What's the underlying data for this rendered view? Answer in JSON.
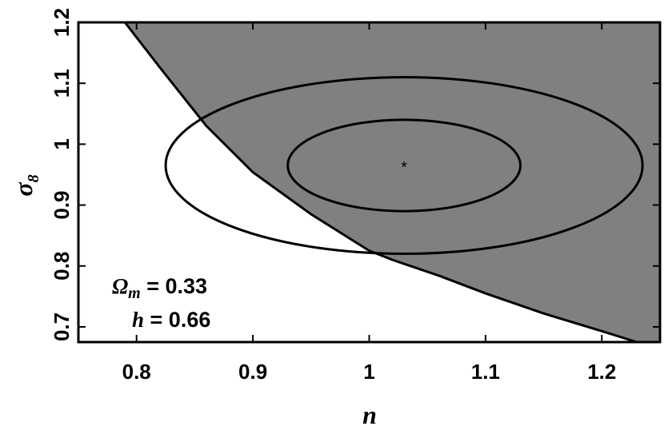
{
  "chart_data": {
    "type": "contour",
    "xlabel": "n",
    "ylabel": "σ",
    "ylabel_sub": "8",
    "xlim": [
      0.75,
      1.25
    ],
    "ylim": [
      0.675,
      1.2
    ],
    "x_ticks": [
      {
        "value": 0.8,
        "label": "0.8"
      },
      {
        "value": 0.9,
        "label": "0.9"
      },
      {
        "value": 1.0,
        "label": "1"
      },
      {
        "value": 1.1,
        "label": "1.1"
      },
      {
        "value": 1.2,
        "label": "1.2"
      }
    ],
    "y_ticks": [
      {
        "value": 0.7,
        "label": "0.7"
      },
      {
        "value": 0.8,
        "label": "0.8"
      },
      {
        "value": 0.9,
        "label": "0.9"
      },
      {
        "value": 1.0,
        "label": "1"
      },
      {
        "value": 1.1,
        "label": "1.1"
      },
      {
        "value": 1.2,
        "label": "1.2"
      }
    ],
    "center": {
      "x": 1.03,
      "y": 0.965,
      "marker": "*"
    },
    "ellipses": [
      {
        "level": "inner",
        "semi_axis_x": 0.1,
        "semi_axis_y": 0.075
      },
      {
        "level": "outer",
        "semi_axis_x": 0.205,
        "semi_axis_y": 0.145
      }
    ],
    "shaded_region": {
      "description_side": "above-right of boundary",
      "color": "#808080",
      "boundary": [
        {
          "x": 0.79,
          "y": 1.2
        },
        {
          "x": 0.82,
          "y": 1.126
        },
        {
          "x": 0.86,
          "y": 1.03
        },
        {
          "x": 0.9,
          "y": 0.954
        },
        {
          "x": 0.95,
          "y": 0.885
        },
        {
          "x": 1.0,
          "y": 0.825
        },
        {
          "x": 1.02,
          "y": 0.81
        },
        {
          "x": 1.06,
          "y": 0.784
        },
        {
          "x": 1.1,
          "y": 0.755
        },
        {
          "x": 1.15,
          "y": 0.722
        },
        {
          "x": 1.2,
          "y": 0.693
        },
        {
          "x": 1.23,
          "y": 0.675
        }
      ]
    },
    "annotations": [
      {
        "symbol": "Ω",
        "sub": "m",
        "text": "= 0.33"
      },
      {
        "symbol": "h",
        "sub": "",
        "text": "= 0.66"
      }
    ],
    "grid": false,
    "legend": "none"
  }
}
